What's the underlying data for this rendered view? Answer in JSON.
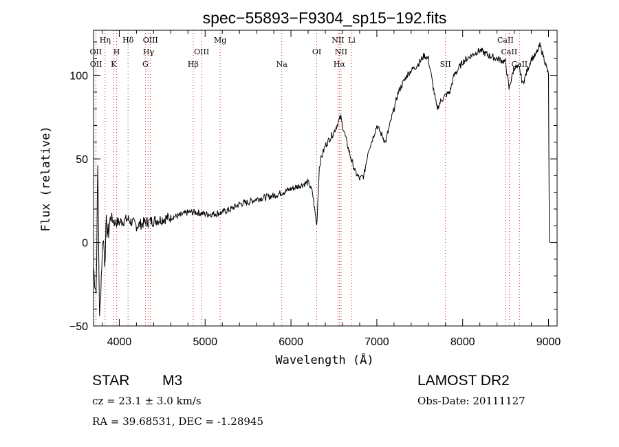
{
  "chart_data": {
    "type": "line",
    "title": "spec−55893−F9304_sp15−192.fits",
    "xlabel": "Wavelength (Å)",
    "ylabel": "Flux (relative)",
    "xlim": [
      3700,
      9100
    ],
    "ylim": [
      -50,
      127
    ],
    "x_ticks": [
      4000,
      5000,
      6000,
      7000,
      8000,
      9000
    ],
    "y_ticks": [
      -50,
      0,
      50,
      100
    ],
    "grid": false,
    "line_color": "#000000",
    "marker_color": "#cc2222",
    "series": [
      {
        "x": [
          3700,
          3730,
          3750,
          3770,
          3790,
          3810,
          3830,
          3850,
          3870,
          3900,
          3950,
          4000,
          4100,
          4200,
          4300,
          4400,
          4500,
          4600,
          4700,
          4800,
          4900,
          5000,
          5100,
          5200,
          5300,
          5400,
          5500,
          5600,
          5700,
          5800,
          5900,
          6000,
          6100,
          6200,
          6250,
          6300,
          6330,
          6350,
          6400,
          6450,
          6500,
          6550,
          6580,
          6600,
          6650,
          6700,
          6750,
          6800,
          6850,
          6900,
          6950,
          7000,
          7050,
          7100,
          7150,
          7200,
          7250,
          7300,
          7350,
          7400,
          7450,
          7500,
          7550,
          7600,
          7650,
          7700,
          7750,
          7800,
          7850,
          7900,
          8000,
          8100,
          8200,
          8300,
          8400,
          8500,
          8540,
          8600,
          8660,
          8700,
          8800,
          8850,
          8900,
          8950,
          9000,
          9010
        ],
        "y": [
          -15,
          -30,
          45,
          -48,
          -20,
          5,
          -10,
          10,
          5,
          15,
          12,
          12,
          14,
          10,
          12,
          13,
          14,
          15,
          16,
          18,
          18,
          17,
          17,
          18,
          20,
          23,
          24,
          26,
          27,
          28,
          30,
          32,
          34,
          36,
          30,
          10,
          45,
          50,
          58,
          62,
          66,
          72,
          75,
          70,
          60,
          50,
          42,
          38,
          40,
          55,
          62,
          70,
          65,
          60,
          70,
          80,
          90,
          95,
          100,
          103,
          105,
          108,
          112,
          110,
          95,
          80,
          85,
          88,
          90,
          100,
          108,
          112,
          115,
          112,
          110,
          108,
          92,
          105,
          104,
          95,
          110,
          112,
          118,
          110,
          100,
          0
        ]
      }
    ],
    "line_markers": [
      {
        "wl": 3727,
        "label": "OII",
        "row": 2
      },
      {
        "wl": 3729,
        "label": "OII",
        "row": 3
      },
      {
        "wl": 3835,
        "label": "Hη",
        "row": 1
      },
      {
        "wl": 3934,
        "label": "K",
        "row": 3
      },
      {
        "wl": 3969,
        "label": "H",
        "row": 2
      },
      {
        "wl": 4102,
        "label": "Hδ",
        "row": 1
      },
      {
        "wl": 4304,
        "label": "G",
        "row": 3
      },
      {
        "wl": 4341,
        "label": "Hγ",
        "row": 2
      },
      {
        "wl": 4363,
        "label": "OIII",
        "row": 1
      },
      {
        "wl": 4861,
        "label": "Hβ",
        "row": 3
      },
      {
        "wl": 4959,
        "label": "OIII",
        "row": 2
      },
      {
        "wl": 5175,
        "label": "Mg",
        "row": 1
      },
      {
        "wl": 5893,
        "label": "Na",
        "row": 3
      },
      {
        "wl": 6300,
        "label": "OI",
        "row": 2
      },
      {
        "wl": 6548,
        "label": "NII",
        "row": 1
      },
      {
        "wl": 6563,
        "label": "Hα",
        "row": 3
      },
      {
        "wl": 6584,
        "label": "NII",
        "row": 2
      },
      {
        "wl": 6708,
        "label": "Li",
        "row": 1
      },
      {
        "wl": 7800,
        "label": "SII",
        "row": 3
      },
      {
        "wl": 8498,
        "label": "CaII",
        "row": 1
      },
      {
        "wl": 8542,
        "label": "CaII",
        "row": 2
      },
      {
        "wl": 8662,
        "label": "CaII",
        "row": 3
      }
    ]
  },
  "info": {
    "object_class": "STAR",
    "subclass": "M3",
    "survey": "LAMOST DR2",
    "velocity": "cz = 23.1 ± 3.0 km/s",
    "obs_date": "Obs-Date: 20111127",
    "coords": "RA =   39.68531, DEC =   -1.28945"
  }
}
